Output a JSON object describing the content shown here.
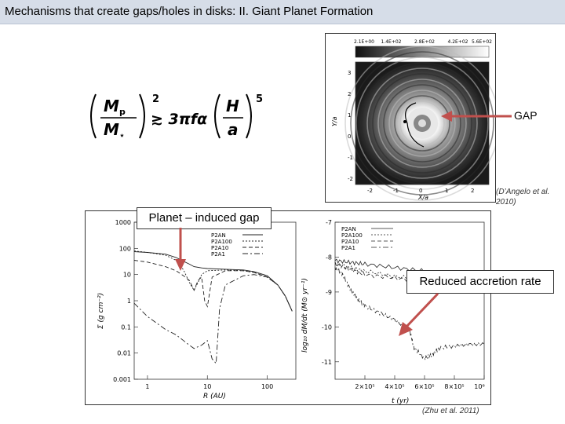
{
  "slide": {
    "title": "Mechanisms that create gaps/holes in disks:  II. Giant Planet Formation"
  },
  "equation": {
    "lhs_num": "M",
    "lhs_num_sub": "p",
    "lhs_den": "M",
    "lhs_den_sub": "⋆",
    "lhs_exp": "2",
    "relation": "≳ 3πfα",
    "rhs_num": "H",
    "rhs_den": "a",
    "rhs_exp": "5"
  },
  "disk_figure": {
    "colorbar_ticks": [
      "2.1E+00",
      "1.4E+02",
      "2.8E+02",
      "4.2E+02",
      "5.6E+02"
    ],
    "y_ticks": [
      "3",
      "2",
      "1",
      "0",
      "-1",
      "-2"
    ],
    "x_ticks": [
      "-2",
      "-1",
      "0",
      "1",
      "2"
    ],
    "xlabel": "X/a",
    "ylabel": "Y/a",
    "gap_label": "GAP",
    "citation": "(D’Angelo et al. 2010)"
  },
  "profile_figure": {
    "callout": "Planet – induced gap",
    "callout2": "Reduced accretion rate",
    "citation": "(Zhu et al. 2011)",
    "left_ylabel": "Σ (g cm⁻²)",
    "left_xlabel": "R (AU)",
    "right_ylabel": "log₁₀ dM/dt (M⊙ yr⁻¹)",
    "right_xlabel": "t (yr)"
  },
  "chart_data": [
    {
      "type": "line",
      "x_scale": "log",
      "y_scale": "log",
      "xlabel": "R (AU)",
      "ylabel": "Σ (g cm⁻²)",
      "xlim": [
        0.6,
        300
      ],
      "ylim": [
        0.001,
        1000
      ],
      "x_ticks": [
        "1",
        "10",
        "100"
      ],
      "y_ticks": [
        "1000",
        "100",
        "10",
        "1",
        "0.1",
        "0.01",
        "0.001"
      ],
      "legend": "top-right",
      "series": [
        {
          "name": "P2AN",
          "x": [
            0.6,
            1,
            2,
            3,
            4,
            5,
            6,
            8,
            10,
            20,
            40,
            60,
            100,
            150,
            200,
            260
          ],
          "y": [
            75,
            70,
            60,
            45,
            32,
            25,
            20,
            18,
            17,
            16,
            15,
            13,
            9,
            4,
            1.5,
            0.4
          ]
        },
        {
          "name": "P2A100",
          "x": [
            0.6,
            1,
            2,
            3,
            4,
            5,
            6,
            7,
            8,
            10,
            20,
            40,
            60,
            100,
            150,
            200,
            260
          ],
          "y": [
            80,
            70,
            55,
            35,
            15,
            5,
            2.5,
            5,
            10,
            14,
            15,
            14,
            12,
            8,
            4,
            1.5,
            0.4
          ]
        },
        {
          "name": "P2A10",
          "x": [
            0.6,
            1,
            2,
            3,
            4,
            5,
            6,
            7,
            8,
            9,
            10,
            12,
            20,
            40,
            60,
            100,
            150,
            200,
            260
          ],
          "y": [
            35,
            30,
            20,
            14,
            9,
            6,
            2.5,
            6,
            8,
            1,
            0.6,
            8,
            14,
            14,
            12,
            8,
            4,
            1.5,
            0.4
          ]
        },
        {
          "name": "P2A1",
          "x": [
            0.6,
            1,
            2,
            3,
            4,
            5,
            6,
            8,
            10,
            12,
            14,
            16,
            20,
            40,
            60,
            100,
            150,
            200,
            260
          ],
          "y": [
            0.8,
            0.25,
            0.08,
            0.05,
            0.03,
            0.02,
            0.015,
            0.02,
            0.03,
            0.006,
            0.004,
            0.5,
            4,
            9,
            10,
            8,
            4,
            1.5,
            0.4
          ]
        }
      ]
    },
    {
      "type": "line",
      "xlabel": "t (yr)",
      "ylabel": "log₁₀ dM/dt (M⊙ yr⁻¹)",
      "xlim": [
        0,
        1000000
      ],
      "ylim": [
        -11.5,
        -7
      ],
      "x_ticks": [
        "2×10⁵",
        "4×10⁵",
        "6×10⁵",
        "8×10⁵",
        "10⁶"
      ],
      "y_ticks": [
        "-7",
        "-8",
        "-9",
        "-10",
        "-11"
      ],
      "legend": "top-left",
      "series": [
        {
          "name": "P2AN",
          "x": [
            0,
            100000,
            200000,
            400000,
            600000,
            800000,
            1000000
          ],
          "y": [
            -8.1,
            -8.15,
            -8.2,
            -8.3,
            -8.4,
            -8.55,
            -8.7
          ]
        },
        {
          "name": "P2A100",
          "x": [
            0,
            100000,
            200000,
            400000,
            600000,
            800000,
            1000000
          ],
          "y": [
            -8.2,
            -8.3,
            -8.4,
            -8.55,
            -8.65,
            -8.75,
            -8.85
          ]
        },
        {
          "name": "P2A10",
          "x": [
            0,
            100000,
            200000,
            400000,
            600000,
            800000,
            1000000
          ],
          "y": [
            -8.2,
            -8.35,
            -8.5,
            -8.6,
            -8.7,
            -8.8,
            -8.9
          ]
        },
        {
          "name": "P2A1",
          "x": [
            0,
            50000,
            100000,
            150000,
            200000,
            300000,
            400000,
            500000,
            530000,
            600000,
            650000,
            700000,
            800000,
            900000,
            1000000
          ],
          "y": [
            -8.3,
            -8.5,
            -8.9,
            -9.2,
            -9.4,
            -9.6,
            -9.8,
            -10.1,
            -10.6,
            -10.9,
            -10.8,
            -10.6,
            -10.55,
            -10.5,
            -10.5
          ]
        }
      ]
    }
  ]
}
